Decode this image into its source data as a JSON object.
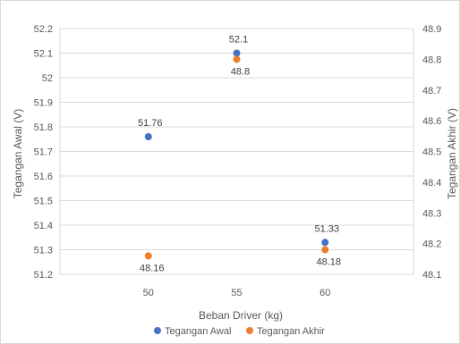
{
  "chart_data": {
    "type": "scatter",
    "xlabel": "Beban Driver (kg)",
    "y_left_label": "Tegangan Awal (V)",
    "y_right_label": "Tegangan Akhir (V)",
    "x_ticks": [
      "50",
      "55",
      "60"
    ],
    "y_left_ticks": [
      "51.2",
      "51.3",
      "51.4",
      "51.5",
      "51.6",
      "51.7",
      "51.8",
      "51.9",
      "52",
      "52.1",
      "52.2"
    ],
    "y_right_ticks": [
      "48.1",
      "48.2",
      "48.3",
      "48.4",
      "48.5",
      "48.6",
      "48.7",
      "48.8",
      "48.9"
    ],
    "xlim": [
      45,
      65
    ],
    "y_left_lim": [
      51.2,
      52.2
    ],
    "y_right_lim": [
      48.1,
      48.9
    ],
    "grid": true,
    "legend_position": "bottom",
    "series": [
      {
        "name": "Tegangan Awal",
        "axis": "left",
        "color": "#4472C4",
        "x": [
          50,
          55,
          60
        ],
        "y": [
          51.76,
          52.1,
          51.33
        ],
        "labels": [
          "51.76",
          "52.1",
          "51.33"
        ]
      },
      {
        "name": "Tegangan Akhir",
        "axis": "right",
        "color": "#ED7D31",
        "x": [
          50,
          55,
          60
        ],
        "y": [
          48.16,
          48.8,
          48.18
        ],
        "labels": [
          "48.16",
          "48.8",
          "48.18"
        ]
      }
    ]
  }
}
